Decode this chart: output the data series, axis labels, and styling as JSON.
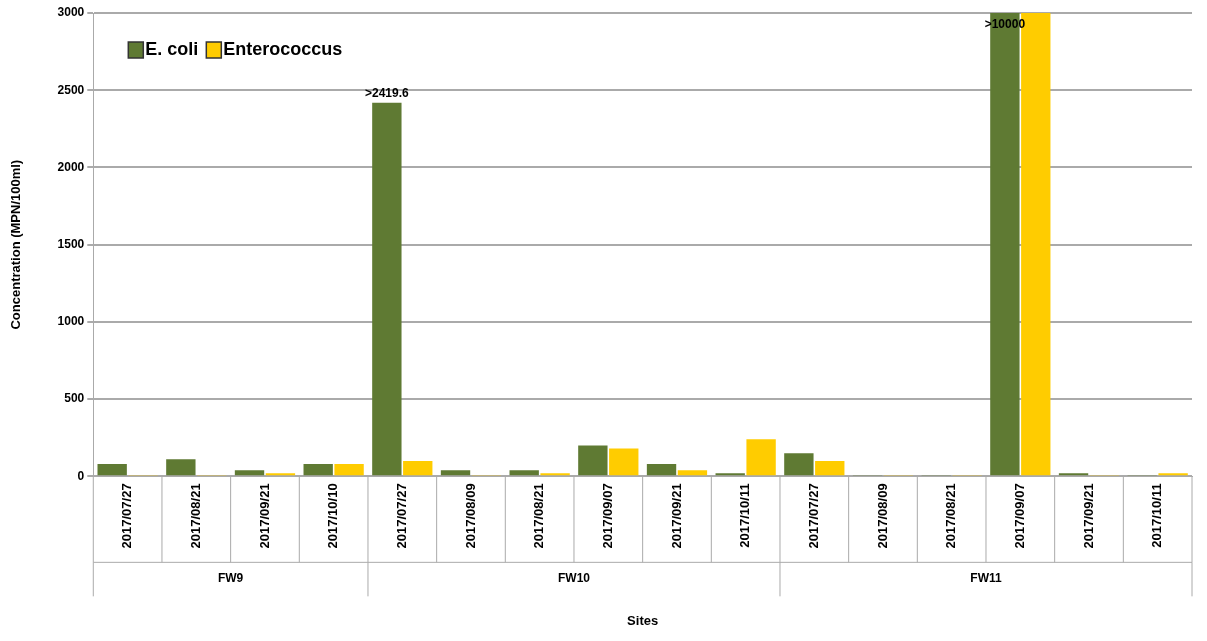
{
  "chart_data": {
    "type": "bar",
    "categories": [
      "2017/07/27",
      "2017/08/21",
      "2017/09/21",
      "2017/10/10",
      "2017/07/27",
      "2017/08/09",
      "2017/08/21",
      "2017/09/07",
      "2017/09/21",
      "2017/10/11",
      "2017/07/27",
      "2017/08/09",
      "2017/08/21",
      "2017/09/07",
      "2017/09/21",
      "2017/10/11"
    ],
    "series": [
      {
        "name": "E. coli",
        "color": "#5f7a33",
        "values": [
          80,
          110,
          40,
          80,
          2419.6,
          40,
          40,
          200,
          80,
          20,
          150,
          5,
          5,
          3000,
          20,
          5
        ],
        "value_labels": [
          null,
          null,
          null,
          null,
          ">2419.6",
          null,
          null,
          null,
          null,
          null,
          null,
          null,
          null,
          ">10000",
          null,
          null
        ]
      },
      {
        "name": "Enterococcus",
        "color": "#ffcc00",
        "values": [
          5,
          5,
          20,
          80,
          100,
          5,
          20,
          180,
          40,
          240,
          100,
          5,
          5,
          3000,
          5,
          20
        ]
      }
    ],
    "xlabel": "Sites",
    "ylabel": "Concentration (MPN/100ml)",
    "ylim": [
      0,
      3000
    ],
    "yticks": [
      0,
      500,
      1000,
      1500,
      2000,
      2500,
      3000
    ],
    "annotations": [
      "FW9",
      "FW10",
      "FW11"
    ],
    "grid": "y",
    "legend": "top left"
  }
}
